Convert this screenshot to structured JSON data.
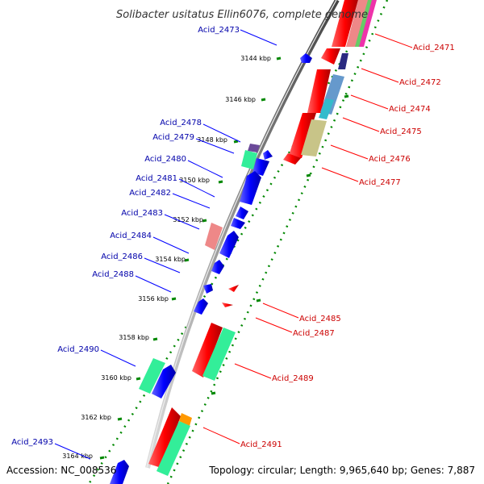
{
  "title": "Solibacter usitatus Ellin6076, complete genome",
  "accession": "Accession: NC_008536",
  "summary": "Topology: circular; Length: 9,965,640 bp; Genes: 7,887",
  "colors": {
    "forward": "#ff0000",
    "reverse": "#0000ff",
    "label_forward": "#cc0000",
    "label_reverse": "#0000aa",
    "backbone": "#999999",
    "dotted": "#008800",
    "cog_green": "#33ee99",
    "cog_pink": "#ee8888",
    "cog_khaki": "#c8c488",
    "cog_steel": "#6699cc",
    "cog_cyan": "#33bbcc",
    "cog_orange": "#ff9900",
    "cog_navy": "#2a2a80",
    "cog_purple": "#6b4a99"
  },
  "ticks": [
    {
      "label": "3144 kbp",
      "kbp": 3144
    },
    {
      "label": "3146 kbp",
      "kbp": 3146
    },
    {
      "label": "3148 kbp",
      "kbp": 3148
    },
    {
      "label": "3150 kbp",
      "kbp": 3150
    },
    {
      "label": "3152 kbp",
      "kbp": 3152
    },
    {
      "label": "3154 kbp",
      "kbp": 3154
    },
    {
      "label": "3156 kbp",
      "kbp": 3156
    },
    {
      "label": "3158 kbp",
      "kbp": 3158
    },
    {
      "label": "3160 kbp",
      "kbp": 3160
    },
    {
      "label": "3162 kbp",
      "kbp": 3162
    },
    {
      "label": "3164 kbp",
      "kbp": 3164
    }
  ],
  "genes": [
    {
      "label": "Acid_2471",
      "strand": "+"
    },
    {
      "label": "Acid_2472",
      "strand": "+"
    },
    {
      "label": "Acid_2473",
      "strand": "-"
    },
    {
      "label": "Acid_2474",
      "strand": "+"
    },
    {
      "label": "Acid_2475",
      "strand": "+"
    },
    {
      "label": "Acid_2476",
      "strand": "+"
    },
    {
      "label": "Acid_2477",
      "strand": "+"
    },
    {
      "label": "Acid_2478",
      "strand": "-"
    },
    {
      "label": "Acid_2479",
      "strand": "-"
    },
    {
      "label": "Acid_2480",
      "strand": "-"
    },
    {
      "label": "Acid_2481",
      "strand": "-"
    },
    {
      "label": "Acid_2482",
      "strand": "-"
    },
    {
      "label": "Acid_2483",
      "strand": "-"
    },
    {
      "label": "Acid_2484",
      "strand": "-"
    },
    {
      "label": "Acid_2485",
      "strand": "+"
    },
    {
      "label": "Acid_2486",
      "strand": "-"
    },
    {
      "label": "Acid_2487",
      "strand": "+"
    },
    {
      "label": "Acid_2488",
      "strand": "-"
    },
    {
      "label": "Acid_2489",
      "strand": "+"
    },
    {
      "label": "Acid_2490",
      "strand": "-"
    },
    {
      "label": "Acid_2491",
      "strand": "+"
    },
    {
      "label": "Acid_2493",
      "strand": "-"
    }
  ]
}
